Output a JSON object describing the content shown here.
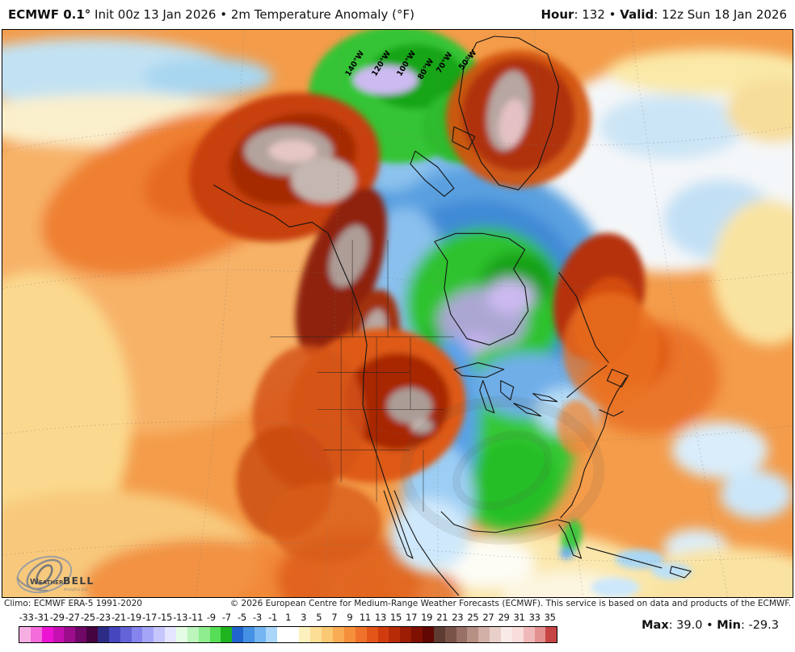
{
  "header": {
    "left_bold": "ECMWF 0.1°",
    "left_rest": " Init 00z 13 Jan 2026 • 2m Temperature Anomaly (°F)",
    "hour_label": "Hour",
    "hour_value": ": 132",
    "sep": " • ",
    "valid_label": "Valid",
    "valid_value": ": 12z Sun 18 Jan 2026"
  },
  "map": {
    "meridians": [
      {
        "label": "140°W"
      },
      {
        "label": "120°W"
      },
      {
        "label": "100°W"
      },
      {
        "label": "80°W"
      },
      {
        "label": "70°W"
      },
      {
        "label": "50°W"
      }
    ],
    "logo": {
      "brand_prefix": "Weather",
      "brand_suffix": "BELL",
      "tagline": "Analytics LLC"
    }
  },
  "footer": {
    "climo": "Climo: ECMWF ERA-5 1991-2020",
    "copyright": "© 2026 European Centre for Medium-Range Weather Forecasts (ECMWF). This service is based on data and products of the ECMWF."
  },
  "scale": {
    "labels": [
      -33,
      -31,
      -29,
      -27,
      -25,
      -23,
      -21,
      -19,
      -17,
      -15,
      -13,
      -11,
      -9,
      -7,
      -5,
      -3,
      -1,
      1,
      3,
      5,
      7,
      9,
      11,
      13,
      15,
      17,
      19,
      21,
      23,
      25,
      27,
      29,
      31,
      33,
      35
    ],
    "colors": [
      "#F7AEE3",
      "#F36CD9",
      "#EC14D2",
      "#C610B1",
      "#9C0D8C",
      "#700867",
      "#460441",
      "#2D2D85",
      "#4646BE",
      "#6464D8",
      "#8484EC",
      "#A5A5F7",
      "#C6C6FD",
      "#E4E4FF",
      "#E4FBE4",
      "#BDF5BD",
      "#8FEC8F",
      "#57DE57",
      "#1FB41F",
      "#2064CC",
      "#4490E4",
      "#74B4F0",
      "#AAD7F9",
      "#FFFFFF",
      "#FFFFFF",
      "#FCF0BE",
      "#FCDE96",
      "#FBC873",
      "#F9AC53",
      "#F68F3B",
      "#F0722A",
      "#E4551A",
      "#D13C0E",
      "#B82B07",
      "#9C1C04",
      "#7F1002",
      "#620702",
      "#5E3C33",
      "#7A5348",
      "#987065",
      "#B69083",
      "#D2B0A8",
      "#E9CFCA",
      "#F8EAE7",
      "#F9DCDC",
      "#F0B9B9",
      "#E39090",
      "#C74444"
    ]
  },
  "stats": {
    "max_label": "Max",
    "max_value": ": 39.0",
    "sep": " • ",
    "min_label": "Min",
    "min_value": ": -29.3"
  },
  "colors": {
    "warm_base": "#F49C4A",
    "cold_blue": "#4D9ADE",
    "cold_green": "#2EC22E",
    "cold_purple": "#B9A4E6",
    "hot_red": "#A82706",
    "maxed_gray": "#AB9C96"
  }
}
